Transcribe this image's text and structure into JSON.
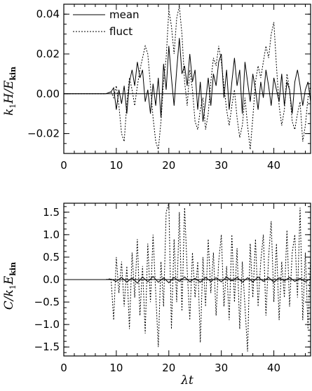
{
  "chart_data": [
    {
      "type": "line",
      "ylabel": "k1 H / E_kin",
      "ylabel_parts": {
        "k": "k",
        "k_sub": "1",
        "mid": "H/E",
        "e_sub": "kin"
      },
      "xlim": [
        0,
        47
      ],
      "ylim": [
        -0.03,
        0.045
      ],
      "xticks": [
        0,
        10,
        20,
        30,
        40
      ],
      "yticks": [
        -0.02,
        0.0,
        0.02,
        0.04
      ],
      "ytick_labels": [
        "−0.02",
        "0.00",
        "0.02",
        "0.04"
      ],
      "zero_line": true,
      "legend": {
        "placement": "top-left",
        "entries": [
          "mean",
          "fluct"
        ]
      },
      "series": [
        {
          "name": "mean",
          "style": "solid",
          "x": [
            0,
            5,
            8,
            9,
            9.5,
            10,
            10.5,
            11,
            11.5,
            12,
            12.5,
            13,
            13.5,
            14,
            14.5,
            15,
            15.5,
            16,
            16.5,
            17,
            17.5,
            18,
            18.5,
            19,
            19.5,
            20,
            20.5,
            21,
            21.5,
            22,
            22.5,
            23,
            23.5,
            24,
            24.5,
            25,
            25.5,
            26,
            26.5,
            27,
            27.5,
            28,
            28.5,
            29,
            29.5,
            30,
            30.5,
            31,
            31.5,
            32,
            32.5,
            33,
            33.5,
            34,
            34.5,
            35,
            35.5,
            36,
            36.5,
            37,
            37.5,
            38,
            38.5,
            39,
            39.5,
            40,
            40.5,
            41,
            41.5,
            42,
            42.5,
            43,
            43.5,
            44,
            44.5,
            45,
            45.5,
            46,
            46.5,
            47
          ],
          "values": [
            0,
            0,
            0,
            0.001,
            0.003,
            -0.008,
            0.002,
            -0.005,
            0.004,
            -0.01,
            0.006,
            0.012,
            0.004,
            0.016,
            0.008,
            0.012,
            -0.004,
            0.002,
            -0.01,
            0.005,
            -0.006,
            0.008,
            -0.012,
            0.015,
            0.002,
            0.024,
            0.008,
            -0.006,
            0.012,
            0.028,
            0.01,
            0.014,
            0.004,
            0.02,
            0.006,
            0.012,
            -0.008,
            0.006,
            -0.014,
            -0.004,
            0.008,
            -0.006,
            0.01,
            0.004,
            0.016,
            0.02,
            -0.002,
            0.012,
            -0.008,
            0.006,
            0.018,
            0.004,
            0.012,
            -0.01,
            0.016,
            0.006,
            -0.004,
            0.01,
            0.002,
            -0.008,
            0.006,
            -0.002,
            0.012,
            0.004,
            -0.006,
            0.008,
            0.002,
            -0.004,
            0.01,
            -0.006,
            0.006,
            0.002,
            -0.01,
            0.006,
            0.012,
            0.004,
            -0.006,
            0.002,
            0.006,
            -0.004
          ]
        },
        {
          "name": "fluct",
          "style": "dashed",
          "x": [
            0,
            5,
            8,
            9,
            9.5,
            10,
            10.5,
            11,
            11.5,
            12,
            12.5,
            13,
            13.5,
            14,
            14.5,
            15,
            15.5,
            16,
            16.5,
            17,
            17.5,
            18,
            18.5,
            19,
            19.5,
            20,
            20.5,
            21,
            21.5,
            22,
            22.5,
            23,
            23.5,
            24,
            24.5,
            25,
            25.5,
            26,
            26.5,
            27,
            27.5,
            28,
            28.5,
            29,
            29.5,
            30,
            30.5,
            31,
            31.5,
            32,
            32.5,
            33,
            33.5,
            34,
            34.5,
            35,
            35.5,
            36,
            36.5,
            37,
            37.5,
            38,
            38.5,
            39,
            39.5,
            40,
            40.5,
            41,
            41.5,
            42,
            42.5,
            43,
            43.5,
            44,
            44.5,
            45,
            45.5,
            46,
            46.5,
            47
          ],
          "values": [
            0,
            0,
            0,
            0.001,
            -0.002,
            0.004,
            -0.006,
            -0.02,
            -0.024,
            -0.005,
            0.008,
            0.002,
            -0.006,
            0.004,
            0.012,
            0.018,
            0.024,
            0.02,
            0.004,
            -0.012,
            -0.024,
            -0.028,
            -0.014,
            0.006,
            0.018,
            0.042,
            0.034,
            0.02,
            0.038,
            0.044,
            0.03,
            0.006,
            -0.006,
            0.012,
            0.002,
            -0.014,
            -0.018,
            -0.008,
            -0.002,
            -0.018,
            -0.01,
            0.006,
            0.018,
            0.014,
            0.024,
            0.016,
            0.004,
            -0.008,
            -0.016,
            -0.006,
            0.002,
            -0.012,
            -0.022,
            -0.016,
            -0.002,
            -0.016,
            -0.028,
            -0.012,
            0.006,
            0.014,
            0.008,
            0.016,
            0.024,
            0.018,
            0.03,
            0.036,
            0.014,
            -0.006,
            -0.016,
            -0.008,
            0.01,
            0.002,
            -0.014,
            -0.018,
            -0.01,
            -0.004,
            -0.024,
            -0.016,
            -0.002,
            0.004
          ]
        }
      ]
    },
    {
      "type": "line",
      "xlabel": "λt",
      "ylabel": "C / k1 E_kin",
      "ylabel_parts": {
        "c": "C/k",
        "k_sub": "1",
        "mid": "E",
        "e_sub": "kin"
      },
      "xlim": [
        0,
        47
      ],
      "ylim": [
        -1.7,
        1.7
      ],
      "xticks": [
        0,
        10,
        20,
        30,
        40
      ],
      "yticks": [
        -1.5,
        -1.0,
        -0.5,
        0.0,
        0.5,
        1.0,
        1.5
      ],
      "ytick_labels": [
        "−1.5",
        "−1.0",
        "−0.5",
        "0.0",
        "0.5",
        "1.0",
        "1.5"
      ],
      "zero_line": true,
      "series": [
        {
          "style": "solid",
          "x": [
            0,
            5,
            8,
            9,
            10,
            11,
            12,
            13,
            14,
            15,
            16,
            17,
            18,
            19,
            20,
            21,
            22,
            23,
            24,
            25,
            26,
            27,
            28,
            29,
            30,
            31,
            32,
            33,
            34,
            35,
            36,
            37,
            38,
            39,
            40,
            41,
            42,
            43,
            44,
            45,
            46,
            47
          ],
          "values": [
            0,
            0,
            0,
            0.01,
            -0.04,
            0.05,
            -0.06,
            0.04,
            -0.08,
            0.06,
            -0.05,
            0.07,
            -0.06,
            0.04,
            -0.07,
            0.05,
            -0.04,
            0.06,
            -0.05,
            0.03,
            -0.06,
            0.05,
            -0.04,
            0.04,
            -0.05,
            0.06,
            -0.03,
            0.05,
            -0.06,
            0.04,
            -0.05,
            0.06,
            -0.04,
            0.05,
            -0.06,
            0.04,
            -0.03,
            0.05,
            -0.04,
            0.03,
            -0.05,
            0.02
          ]
        },
        {
          "style": "dashed",
          "x": [
            0,
            5,
            8,
            9,
            9.5,
            10,
            10.5,
            11,
            11.5,
            12,
            12.5,
            13,
            13.5,
            14,
            14.5,
            15,
            15.5,
            16,
            16.5,
            17,
            17.5,
            18,
            18.5,
            19,
            19.5,
            20,
            20.5,
            21,
            21.5,
            22,
            22.5,
            23,
            23.5,
            24,
            24.5,
            25,
            25.5,
            26,
            26.5,
            27,
            27.5,
            28,
            28.5,
            29,
            29.5,
            30,
            30.5,
            31,
            31.5,
            32,
            32.5,
            33,
            33.5,
            34,
            34.5,
            35,
            35.5,
            36,
            36.5,
            37,
            37.5,
            38,
            38.5,
            39,
            39.5,
            40,
            40.5,
            41,
            41.5,
            42,
            42.5,
            43,
            43.5,
            44,
            44.5,
            45,
            45.5,
            46,
            46.5,
            47
          ],
          "values": [
            0,
            0,
            0,
            0.02,
            -0.9,
            0.5,
            -0.3,
            0.4,
            -0.6,
            0.3,
            -1.1,
            0.6,
            -0.4,
            0.9,
            -0.8,
            0.3,
            -1.2,
            0.8,
            -0.5,
            1.0,
            -0.3,
            -1.5,
            0.4,
            -0.6,
            1.5,
            1.7,
            -1.1,
            0.9,
            -0.5,
            1.5,
            -0.7,
            1.6,
            0.2,
            -0.9,
            0.6,
            -0.4,
            0.4,
            -1.4,
            0.5,
            -0.6,
            0.9,
            -0.3,
            0.6,
            -0.8,
            0.4,
            1.0,
            -0.6,
            0.3,
            -0.9,
            1.0,
            -0.5,
            0.7,
            -1.1,
            0.4,
            -0.6,
            -1.6,
            0.8,
            -0.4,
            0.9,
            -0.6,
            0.4,
            1.0,
            -0.8,
            0.5,
            1.3,
            -0.5,
            0.8,
            -0.9,
            0.4,
            -0.4,
            1.1,
            -0.6,
            0.6,
            1.0,
            -0.4,
            1.6,
            -0.9,
            0.6,
            -1.1,
            0.5
          ]
        }
      ]
    }
  ]
}
